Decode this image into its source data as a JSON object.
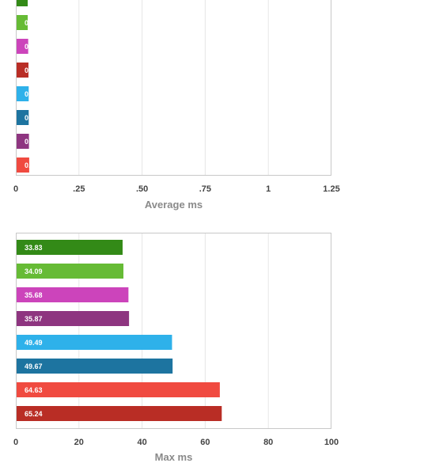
{
  "chart_data": [
    {
      "type": "bar",
      "orientation": "horizontal",
      "xlabel": "Average ms",
      "xlim": [
        0,
        1.25
      ],
      "ticks": [
        {
          "value": 0,
          "label": "0"
        },
        {
          "value": 0.25,
          "label": ".25"
        },
        {
          "value": 0.5,
          "label": ".50"
        },
        {
          "value": 0.75,
          "label": ".75"
        },
        {
          "value": 1,
          "label": "1"
        },
        {
          "value": 1.25,
          "label": "1.25"
        }
      ],
      "grid": true,
      "bars": [
        {
          "value": 0.047,
          "label": "",
          "color": "#338a17"
        },
        {
          "value": 0.047,
          "label": "0.047",
          "color": "#66bb35"
        },
        {
          "value": 0.049,
          "label": "0.049",
          "color": "#cc44bb"
        },
        {
          "value": 0.05,
          "label": "0.050",
          "color": "#b92d25"
        },
        {
          "value": 0.051,
          "label": "0.051",
          "color": "#2eb1ea"
        },
        {
          "value": 0.051,
          "label": "0.051",
          "color": "#1d74a0"
        },
        {
          "value": 0.052,
          "label": "0.052",
          "color": "#8e3580"
        },
        {
          "value": 0.053,
          "label": "0.053",
          "color": "#f04a40"
        }
      ]
    },
    {
      "type": "bar",
      "orientation": "horizontal",
      "xlabel": "Max ms",
      "xlim": [
        0,
        100
      ],
      "ticks": [
        {
          "value": 0,
          "label": "0"
        },
        {
          "value": 20,
          "label": "20"
        },
        {
          "value": 40,
          "label": "40"
        },
        {
          "value": 60,
          "label": "60"
        },
        {
          "value": 80,
          "label": "80"
        },
        {
          "value": 100,
          "label": "100"
        }
      ],
      "grid": true,
      "bars": [
        {
          "value": 33.83,
          "label": "33.83",
          "color": "#338a17"
        },
        {
          "value": 34.09,
          "label": "34.09",
          "color": "#66bb35"
        },
        {
          "value": 35.68,
          "label": "35.68",
          "color": "#cc44bb"
        },
        {
          "value": 35.87,
          "label": "35.87",
          "color": "#8e3580"
        },
        {
          "value": 49.49,
          "label": "49.49",
          "color": "#2eb1ea"
        },
        {
          "value": 49.67,
          "label": "49.67",
          "color": "#1d74a0"
        },
        {
          "value": 64.63,
          "label": "64.63",
          "color": "#f04a40"
        },
        {
          "value": 65.24,
          "label": "65.24",
          "color": "#b92d25"
        }
      ]
    }
  ]
}
